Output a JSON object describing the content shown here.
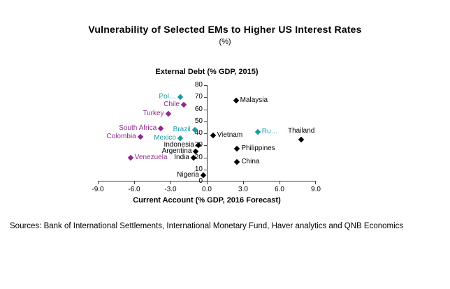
{
  "page": {
    "sources": "Sources: Bank of International Settlements, International Monetary Fund, Haver analytics and QNB Economics"
  },
  "chart_data": {
    "type": "scatter",
    "title": "Vulnerability of Selected EMs to Higher US Interest Rates",
    "subtitle": "(%)",
    "xlabel": "Current Account (% GDP, 2016 Forecast)",
    "ylabel": "External Debt (% GDP, 2015)",
    "xlim": [
      -9,
      9
    ],
    "ylim": [
      0,
      80
    ],
    "grid": false,
    "legend": "none",
    "colors": {
      "purple": "#92278f",
      "teal": "#1b9aa1",
      "black": "#000000"
    },
    "x_ticks": [
      {
        "value": -9,
        "label": "-9.0"
      },
      {
        "value": -6,
        "label": "-6.0"
      },
      {
        "value": -3,
        "label": "-3.0"
      },
      {
        "value": 0,
        "label": "0.0"
      },
      {
        "value": 3,
        "label": "3.0"
      },
      {
        "value": 6,
        "label": "6.0"
      },
      {
        "value": 9,
        "label": "9.0"
      }
    ],
    "y_ticks": [
      {
        "value": 0,
        "label": "0"
      },
      {
        "value": 10,
        "label": "10"
      },
      {
        "value": 20,
        "label": "20"
      },
      {
        "value": 30,
        "label": "30"
      },
      {
        "value": 40,
        "label": "40"
      },
      {
        "value": 50,
        "label": "50"
      },
      {
        "value": 60,
        "label": "60"
      },
      {
        "value": 70,
        "label": "70"
      },
      {
        "value": 80,
        "label": "80"
      }
    ],
    "points": [
      {
        "label": "Pol…",
        "x": -2.2,
        "y": 70,
        "color": "teal",
        "side": "left"
      },
      {
        "label": "Chile",
        "x": -1.9,
        "y": 64,
        "color": "purple",
        "side": "left"
      },
      {
        "label": "Malaysia",
        "x": 2.4,
        "y": 67,
        "color": "black",
        "side": "right"
      },
      {
        "label": "Turkey",
        "x": -3.2,
        "y": 56,
        "color": "purple",
        "side": "left"
      },
      {
        "label": "South Africa",
        "x": -3.8,
        "y": 44,
        "color": "purple",
        "side": "left"
      },
      {
        "label": "Brazil",
        "x": -1.0,
        "y": 43,
        "color": "teal",
        "side": "left"
      },
      {
        "label": "Colombia",
        "x": -5.5,
        "y": 37,
        "color": "purple",
        "side": "left"
      },
      {
        "label": "Mexico",
        "x": -2.2,
        "y": 36,
        "color": "teal",
        "side": "left"
      },
      {
        "label": "Vietnam",
        "x": 0.5,
        "y": 38,
        "color": "black",
        "side": "right"
      },
      {
        "label": "Ru…",
        "x": 4.2,
        "y": 41,
        "color": "teal",
        "side": "right"
      },
      {
        "label": "Thailand",
        "x": 7.8,
        "y": 35,
        "color": "black",
        "side": "above"
      },
      {
        "label": "Indonesia",
        "x": -0.7,
        "y": 30,
        "color": "black",
        "side": "left"
      },
      {
        "label": "Argentina",
        "x": -0.9,
        "y": 25,
        "color": "black",
        "side": "left"
      },
      {
        "label": "Philippines",
        "x": 2.5,
        "y": 27,
        "color": "black",
        "side": "right"
      },
      {
        "label": "India",
        "x": -1.1,
        "y": 20,
        "color": "black",
        "side": "left"
      },
      {
        "label": "Venezuela",
        "x": -6.3,
        "y": 20,
        "color": "purple",
        "side": "right"
      },
      {
        "label": "China",
        "x": 2.5,
        "y": 16,
        "color": "black",
        "side": "right"
      },
      {
        "label": "Nigeria",
        "x": -0.3,
        "y": 5,
        "color": "black",
        "side": "left"
      }
    ]
  }
}
